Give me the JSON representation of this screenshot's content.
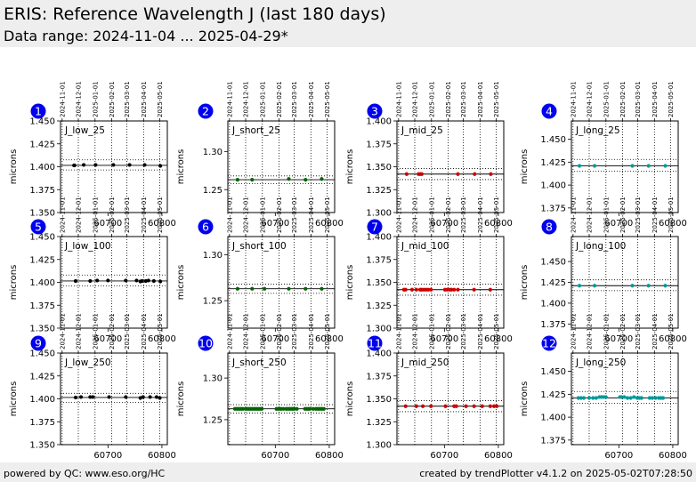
{
  "header": {
    "title": "ERIS: Reference Wavelength J (last 180 days)",
    "subtitle": "Data range: 2024-11-04 ... 2025-04-29*"
  },
  "footer": {
    "left": "powered by QC: www.eso.org/HC",
    "right": "created by trendPlotter v4.1.2 on 2025-05-02T07:28:50"
  },
  "colors": {
    "low": "#000000",
    "short": "#006400",
    "mid": "#cc0000",
    "long": "#009999",
    "badge": "#0000ee",
    "header_bg": "#eeeeee"
  },
  "chart_data": [
    {
      "type": "scatter",
      "panel": "1",
      "label": "J_low_25",
      "ylabel": "microns",
      "xlim": [
        60612,
        60810
      ],
      "ylim": [
        1.35,
        1.45
      ],
      "yticks": [
        "1.350",
        "1.375",
        "1.400",
        "1.425",
        "1.450"
      ],
      "ytick_values": [
        1.35,
        1.375,
        1.4,
        1.425,
        1.45
      ],
      "xticks": [
        "60700",
        "60800"
      ],
      "xtick_values": [
        60700,
        60800
      ],
      "date_ticks": [
        "2024-11-01",
        "2024-12-01",
        "2025-01-01",
        "2025-02-01",
        "2025-03-01",
        "2025-04-01",
        "2025-05-01"
      ],
      "date_tick_values": [
        60615,
        60645,
        60676,
        60707,
        60735,
        60766,
        60796
      ],
      "ref": 1.4015,
      "band": [
        1.3965,
        1.4075
      ],
      "x": [
        60637,
        60638,
        60655,
        60677,
        60710,
        60740,
        60768,
        60797
      ],
      "y": [
        1.4015,
        1.4015,
        1.402,
        1.402,
        1.402,
        1.402,
        1.402,
        1.401
      ]
    },
    {
      "type": "scatter",
      "panel": "2",
      "label": "J_short_25",
      "ylabel": "microns",
      "xlim": [
        60612,
        60810
      ],
      "ylim": [
        1.22,
        1.34
      ],
      "yticks": [
        "1.25",
        "1.30"
      ],
      "ytick_values": [
        1.25,
        1.3
      ],
      "xticks": [
        "60700",
        "60800"
      ],
      "xtick_values": [
        60700,
        60800
      ],
      "date_ticks": [
        "2024-11-01",
        "2024-12-01",
        "2025-01-01",
        "2025-02-01",
        "2025-03-01",
        "2025-04-01",
        "2025-05-01"
      ],
      "date_tick_values": [
        60615,
        60645,
        60676,
        60707,
        60735,
        60766,
        60796
      ],
      "ref": 1.263,
      "band": [
        1.258,
        1.268
      ],
      "x": [
        60630,
        60657,
        60725,
        60756,
        60786
      ],
      "y": [
        1.263,
        1.263,
        1.264,
        1.263,
        1.264
      ]
    },
    {
      "type": "scatter",
      "panel": "3",
      "label": "J_mid_25",
      "ylabel": "microns",
      "xlim": [
        60612,
        60810
      ],
      "ylim": [
        1.3,
        1.4
      ],
      "yticks": [
        "1.300",
        "1.325",
        "1.350",
        "1.375",
        "1.400"
      ],
      "ytick_values": [
        1.3,
        1.325,
        1.35,
        1.375,
        1.4
      ],
      "xticks": [
        "60700",
        "60800"
      ],
      "xtick_values": [
        60700,
        60800
      ],
      "date_ticks": [
        "2024-11-01",
        "2024-12-01",
        "2025-01-01",
        "2025-02-01",
        "2025-03-01",
        "2025-04-01",
        "2025-05-01"
      ],
      "date_tick_values": [
        60615,
        60645,
        60676,
        60707,
        60735,
        60766,
        60796
      ],
      "ref": 1.342,
      "band": [
        1.336,
        1.348
      ],
      "x": [
        60630,
        60652,
        60655,
        60658,
        60725,
        60756,
        60786
      ],
      "y": [
        1.342,
        1.342,
        1.342,
        1.342,
        1.342,
        1.342,
        1.342
      ]
    },
    {
      "type": "scatter",
      "panel": "4",
      "label": "J_long_25",
      "ylabel": "microns",
      "xlim": [
        60612,
        60810
      ],
      "ylim": [
        1.37,
        1.47
      ],
      "yticks": [
        "1.375",
        "1.400",
        "1.425",
        "1.450"
      ],
      "ytick_values": [
        1.375,
        1.4,
        1.425,
        1.45
      ],
      "xticks": [
        "60700",
        "60800"
      ],
      "xtick_values": [
        60700,
        60800
      ],
      "date_ticks": [
        "2024-11-01",
        "2024-12-01",
        "2025-01-01",
        "2025-02-01",
        "2025-03-01",
        "2025-04-01",
        "2025-05-01"
      ],
      "date_tick_values": [
        60615,
        60645,
        60676,
        60707,
        60735,
        60766,
        60796
      ],
      "ref": 1.421,
      "band": [
        1.415,
        1.428
      ],
      "x": [
        60627,
        60655,
        60725,
        60755,
        60786
      ],
      "y": [
        1.421,
        1.421,
        1.421,
        1.421,
        1.421
      ]
    },
    {
      "type": "scatter",
      "panel": "5",
      "label": "J_low_100",
      "ylabel": "microns",
      "xlim": [
        60612,
        60810
      ],
      "ylim": [
        1.35,
        1.45
      ],
      "yticks": [
        "1.350",
        "1.375",
        "1.400",
        "1.425",
        "1.450"
      ],
      "ytick_values": [
        1.35,
        1.375,
        1.4,
        1.425,
        1.45
      ],
      "xticks": [
        "60700",
        "60800"
      ],
      "xtick_values": [
        60700,
        60800
      ],
      "date_ticks": [
        "2024-11-01",
        "2024-12-01",
        "2025-01-01",
        "2025-02-01",
        "2025-03-01",
        "2025-04-01",
        "2025-05-01"
      ],
      "date_tick_values": [
        60615,
        60645,
        60676,
        60707,
        60735,
        60766,
        60796
      ],
      "ref": 1.4015,
      "band": [
        1.396,
        1.408
      ],
      "x": [
        60640,
        60667,
        60680,
        60700,
        60733,
        60753,
        60760,
        60763,
        60770,
        60775,
        60785,
        60797
      ],
      "y": [
        1.4015,
        1.4015,
        1.402,
        1.402,
        1.402,
        1.402,
        1.401,
        1.4015,
        1.4015,
        1.402,
        1.4015,
        1.401
      ]
    },
    {
      "type": "scatter",
      "panel": "6",
      "label": "J_short_100",
      "ylabel": "microns",
      "xlim": [
        60612,
        60810
      ],
      "ylim": [
        1.22,
        1.32
      ],
      "yticks": [
        "1.25",
        "1.30"
      ],
      "ytick_values": [
        1.25,
        1.3
      ],
      "xticks": [
        "60700",
        "60800"
      ],
      "xtick_values": [
        60700,
        60800
      ],
      "date_ticks": [
        "2024-11-01",
        "2024-12-01",
        "2025-01-01",
        "2025-02-01",
        "2025-03-01",
        "2025-04-01",
        "2025-05-01"
      ],
      "date_tick_values": [
        60615,
        60645,
        60676,
        60707,
        60735,
        60766,
        60796
      ],
      "ref": 1.263,
      "band": [
        1.258,
        1.268
      ],
      "x": [
        60630,
        60657,
        60680,
        60725,
        60756,
        60786
      ],
      "y": [
        1.263,
        1.263,
        1.263,
        1.263,
        1.263,
        1.263
      ]
    },
    {
      "type": "scatter",
      "panel": "7",
      "label": "J_mid_100",
      "ylabel": "microns",
      "xlim": [
        60612,
        60810
      ],
      "ylim": [
        1.3,
        1.4
      ],
      "yticks": [
        "1.300",
        "1.325",
        "1.350",
        "1.375",
        "1.400"
      ],
      "ytick_values": [
        1.3,
        1.325,
        1.35,
        1.375,
        1.4
      ],
      "xticks": [
        "60700",
        "60800"
      ],
      "xtick_values": [
        60700,
        60800
      ],
      "date_ticks": [
        "2024-11-01",
        "2024-12-01",
        "2025-01-01",
        "2025-02-01",
        "2025-03-01",
        "2025-04-01",
        "2025-05-01"
      ],
      "date_tick_values": [
        60615,
        60645,
        60676,
        60707,
        60735,
        60766,
        60796
      ],
      "ref": 1.342,
      "band": [
        1.336,
        1.348
      ],
      "x": [
        60625,
        60628,
        60640,
        60648,
        60655,
        60658,
        60662,
        60666,
        60670,
        60675,
        60701,
        60705,
        60710,
        60713,
        60718,
        60725,
        60755,
        60785
      ],
      "y": [
        1.342,
        1.342,
        1.342,
        1.342,
        1.342,
        1.342,
        1.342,
        1.342,
        1.342,
        1.342,
        1.342,
        1.342,
        1.342,
        1.342,
        1.342,
        1.342,
        1.342,
        1.342
      ]
    },
    {
      "type": "scatter",
      "panel": "8",
      "label": "J_long_100",
      "ylabel": "microns",
      "xlim": [
        60612,
        60810
      ],
      "ylim": [
        1.37,
        1.48
      ],
      "yticks": [
        "1.375",
        "1.400",
        "1.425",
        "1.450"
      ],
      "ytick_values": [
        1.375,
        1.4,
        1.425,
        1.45
      ],
      "xticks": [
        "60700",
        "60800"
      ],
      "xtick_values": [
        60700,
        60800
      ],
      "date_ticks": [
        "2024-11-01",
        "2024-12-01",
        "2025-01-01",
        "2025-02-01",
        "2025-03-01",
        "2025-04-01",
        "2025-05-01"
      ],
      "date_tick_values": [
        60615,
        60645,
        60676,
        60707,
        60735,
        60766,
        60796
      ],
      "ref": 1.421,
      "band": [
        1.415,
        1.428
      ],
      "x": [
        60627,
        60655,
        60725,
        60755,
        60786
      ],
      "y": [
        1.421,
        1.421,
        1.421,
        1.421,
        1.421
      ]
    },
    {
      "type": "scatter",
      "panel": "9",
      "label": "J_low_250",
      "ylabel": "microns",
      "xlim": [
        60612,
        60810
      ],
      "ylim": [
        1.35,
        1.45
      ],
      "yticks": [
        "1.350",
        "1.375",
        "1.400",
        "1.425",
        "1.450"
      ],
      "ytick_values": [
        1.35,
        1.375,
        1.4,
        1.425,
        1.45
      ],
      "xticks": [
        "60700",
        "60800"
      ],
      "xtick_values": [
        60700,
        60800
      ],
      "date_ticks": [
        "2024-11-01",
        "2024-12-01",
        "2025-01-01",
        "2025-02-01",
        "2025-03-01",
        "2025-04-01",
        "2025-05-01"
      ],
      "date_tick_values": [
        60615,
        60645,
        60676,
        60707,
        60735,
        60766,
        60796
      ],
      "ref": 1.4015,
      "band": [
        1.396,
        1.406
      ],
      "x": [
        60640,
        60650,
        60667,
        60672,
        60702,
        60733,
        60760,
        60765,
        60778,
        60790,
        60796
      ],
      "y": [
        1.4015,
        1.402,
        1.402,
        1.402,
        1.402,
        1.402,
        1.401,
        1.402,
        1.402,
        1.402,
        1.401
      ]
    },
    {
      "type": "scatter",
      "panel": "10",
      "label": "J_short_250",
      "ylabel": "microns",
      "xlim": [
        60612,
        60810
      ],
      "ylim": [
        1.22,
        1.33
      ],
      "yticks": [
        "1.25",
        "1.30"
      ],
      "ytick_values": [
        1.25,
        1.3
      ],
      "xticks": [
        "60700",
        "60800"
      ],
      "xtick_values": [
        60700,
        60800
      ],
      "date_ticks": [
        "2024-11-01",
        "2024-12-01",
        "2025-01-01",
        "2025-02-01",
        "2025-03-01",
        "2025-04-01",
        "2025-05-01"
      ],
      "date_tick_values": [
        60615,
        60645,
        60676,
        60707,
        60735,
        60766,
        60796
      ],
      "ref": 1.263,
      "band": [
        1.258,
        1.268
      ],
      "x": [
        60625,
        60628,
        60631,
        60634,
        60637,
        60640,
        60645,
        60648,
        60651,
        60654,
        60657,
        60660,
        60663,
        60666,
        60669,
        60672,
        60675,
        60702,
        60705,
        60708,
        60711,
        60715,
        60720,
        60723,
        60726,
        60729,
        60732,
        60735,
        60740,
        60755,
        60758,
        60761,
        60764,
        60770,
        60775,
        60778,
        60781,
        60784,
        60787,
        60790
      ],
      "y": [
        1.263,
        1.263,
        1.263,
        1.263,
        1.263,
        1.263,
        1.263,
        1.263,
        1.263,
        1.263,
        1.263,
        1.263,
        1.263,
        1.263,
        1.263,
        1.263,
        1.263,
        1.263,
        1.263,
        1.263,
        1.263,
        1.263,
        1.263,
        1.263,
        1.263,
        1.263,
        1.263,
        1.263,
        1.263,
        1.263,
        1.263,
        1.263,
        1.263,
        1.263,
        1.263,
        1.263,
        1.263,
        1.263,
        1.263,
        1.263
      ]
    },
    {
      "type": "scatter",
      "panel": "11",
      "label": "J_mid_250",
      "ylabel": "microns",
      "xlim": [
        60612,
        60810
      ],
      "ylim": [
        1.3,
        1.4
      ],
      "yticks": [
        "1.300",
        "1.325",
        "1.350",
        "1.375",
        "1.400"
      ],
      "ytick_values": [
        1.3,
        1.325,
        1.35,
        1.375,
        1.4
      ],
      "xticks": [
        "60700",
        "60800"
      ],
      "xtick_values": [
        60700,
        60800
      ],
      "date_ticks": [
        "2024-11-01",
        "2024-12-01",
        "2025-01-01",
        "2025-02-01",
        "2025-03-01",
        "2025-04-01",
        "2025-05-01"
      ],
      "date_tick_values": [
        60615,
        60645,
        60676,
        60707,
        60735,
        60766,
        60796
      ],
      "ref": 1.342,
      "band": [
        1.336,
        1.348
      ],
      "x": [
        60628,
        60648,
        60660,
        60675,
        60702,
        60718,
        60722,
        60740,
        60755,
        60770,
        60785,
        60792,
        60797
      ],
      "y": [
        1.342,
        1.342,
        1.342,
        1.342,
        1.342,
        1.342,
        1.342,
        1.342,
        1.342,
        1.342,
        1.342,
        1.342,
        1.342
      ]
    },
    {
      "type": "scatter",
      "panel": "12",
      "label": "J_long_250",
      "ylabel": "microns",
      "xlim": [
        60612,
        60810
      ],
      "ylim": [
        1.37,
        1.47
      ],
      "yticks": [
        "1.375",
        "1.400",
        "1.425",
        "1.450"
      ],
      "ytick_values": [
        1.375,
        1.4,
        1.425,
        1.45
      ],
      "xticks": [
        "60700",
        "60800"
      ],
      "xtick_values": [
        60700,
        60800
      ],
      "date_ticks": [
        "2024-11-01",
        "2024-12-01",
        "2025-01-01",
        "2025-02-01",
        "2025-03-01",
        "2025-04-01",
        "2025-05-01"
      ],
      "date_tick_values": [
        60615,
        60645,
        60676,
        60707,
        60735,
        60766,
        60796
      ],
      "ref": 1.421,
      "band": [
        1.415,
        1.428
      ],
      "x": [
        60625,
        60630,
        60635,
        60645,
        60652,
        60658,
        60664,
        60668,
        60672,
        60676,
        60702,
        60705,
        60710,
        60716,
        60722,
        60728,
        60734,
        60738,
        60742,
        60757,
        60762,
        60768,
        60774,
        60778,
        60782
      ],
      "y": [
        1.421,
        1.421,
        1.421,
        1.421,
        1.421,
        1.421,
        1.422,
        1.422,
        1.422,
        1.422,
        1.422,
        1.422,
        1.422,
        1.421,
        1.421,
        1.422,
        1.421,
        1.421,
        1.421,
        1.421,
        1.421,
        1.421,
        1.421,
        1.421,
        1.421
      ]
    }
  ]
}
